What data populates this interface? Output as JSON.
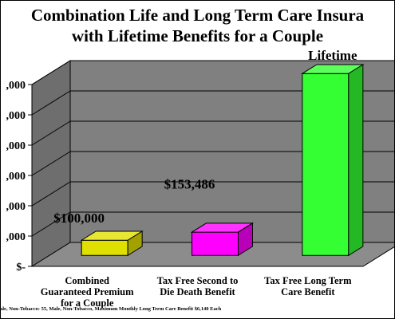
{
  "title": {
    "line1": "Combination Life and Long Term Care Insura",
    "line2": "with Lifetime Benefits for a Couple"
  },
  "footnote": "ale, Non-Tobacco: 55, Male, Non-Tobacco, Maximum Monthly Long Term Care Benefit $6,140 Each",
  "colors": {
    "wall": "#808080",
    "wall_left": "#6e6e6e",
    "floor": "#8c8c8c",
    "bar1": "#e0e000",
    "bar2": "#ff00ff",
    "bar3": "#33ff33"
  },
  "chart_data": {
    "type": "bar",
    "title": "Combination Life and Long Term Care Insura with Lifetime Benefits for a Couple",
    "categories": [
      [
        "Combined",
        "Guaranteed Premium",
        "for a Couple"
      ],
      [
        "Tax Free Second to",
        "Die Death Benefit"
      ],
      [
        "Tax Free Long Term",
        "Care Benefit"
      ]
    ],
    "values": [
      100000,
      153486,
      1200000
    ],
    "data_labels": [
      "$100,000",
      "$153,486",
      "Lifetime"
    ],
    "y_tick_labels": [
      "$-",
      ",000",
      ",000",
      ",000",
      ",000",
      ",000",
      ",000"
    ],
    "ylim": [
      0,
      1200000
    ],
    "grid": true
  }
}
